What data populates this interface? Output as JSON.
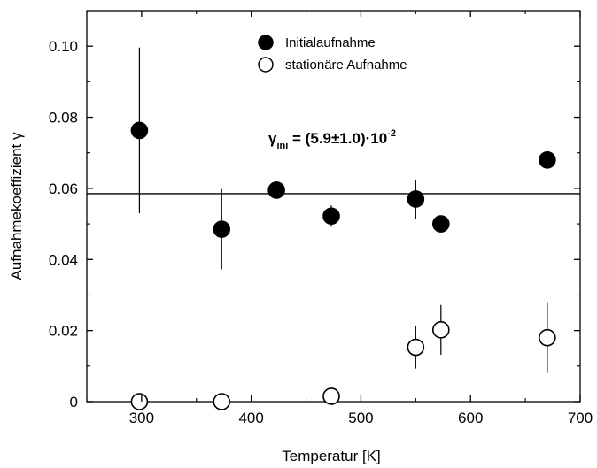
{
  "chart_data": {
    "type": "scatter",
    "xlabel": "Temperatur [K]",
    "ylabel": "Aufnahmekoeffizient γ",
    "xlim": [
      250,
      700
    ],
    "ylim": [
      0,
      0.11
    ],
    "xticks": [
      {
        "value": 300,
        "label": "300"
      },
      {
        "value": 400,
        "label": "400"
      },
      {
        "value": 500,
        "label": "500"
      },
      {
        "value": 600,
        "label": "600"
      },
      {
        "value": 700,
        "label": "700"
      }
    ],
    "yticks": [
      {
        "value": 0,
        "label": "0"
      },
      {
        "value": 0.02,
        "label": "0.02"
      },
      {
        "value": 0.04,
        "label": "0.04"
      },
      {
        "value": 0.06,
        "label": "0.06"
      },
      {
        "value": 0.08,
        "label": "0.08"
      },
      {
        "value": 0.1,
        "label": "0.10"
      }
    ],
    "grid": false,
    "legend_position": "top-center",
    "series": [
      {
        "name": "Initialaufnahme",
        "marker": "filled-circle",
        "color": "#000000",
        "points": [
          {
            "x": 298,
            "y": 0.0763,
            "err": 0.0233
          },
          {
            "x": 373,
            "y": 0.0485,
            "err": 0.0113
          },
          {
            "x": 423,
            "y": 0.0595,
            "err": 0.0
          },
          {
            "x": 473,
            "y": 0.0522,
            "err": 0.003
          },
          {
            "x": 550,
            "y": 0.057,
            "err": 0.0055
          },
          {
            "x": 573,
            "y": 0.05,
            "err": 0.0
          },
          {
            "x": 670,
            "y": 0.068,
            "err": 0.0
          }
        ]
      },
      {
        "name": "stationäre Aufnahme",
        "marker": "open-circle",
        "color": "#000000",
        "points": [
          {
            "x": 298,
            "y": 0.0,
            "err": 0.0
          },
          {
            "x": 373,
            "y": 0.0,
            "err": 0.0
          },
          {
            "x": 473,
            "y": 0.0015,
            "err": 0.0
          },
          {
            "x": 550,
            "y": 0.0153,
            "err": 0.006
          },
          {
            "x": 573,
            "y": 0.0202,
            "err": 0.007
          },
          {
            "x": 670,
            "y": 0.018,
            "err": 0.01
          }
        ]
      }
    ],
    "reference_line": {
      "y": 0.0585
    },
    "annotation": {
      "base": "γ",
      "subscript": "ini",
      "text": " = (5.9±1.0)·10",
      "superscript": "-2"
    }
  }
}
